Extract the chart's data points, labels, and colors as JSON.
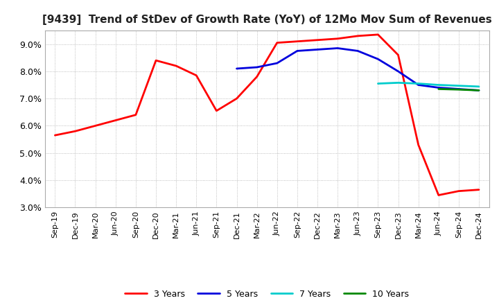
{
  "title": "[9439]  Trend of StDev of Growth Rate (YoY) of 12Mo Mov Sum of Revenues",
  "title_fontsize": 11,
  "ylim": [
    0.03,
    0.095
  ],
  "yticks": [
    0.03,
    0.04,
    0.05,
    0.06,
    0.07,
    0.08,
    0.09
  ],
  "background_color": "#ffffff",
  "plot_bg_color": "#ffffff",
  "grid_color": "#888888",
  "x_labels": [
    "Sep-19",
    "Dec-19",
    "Mar-20",
    "Jun-20",
    "Sep-20",
    "Dec-20",
    "Mar-21",
    "Jun-21",
    "Sep-21",
    "Dec-21",
    "Mar-22",
    "Jun-22",
    "Sep-22",
    "Dec-22",
    "Mar-23",
    "Jun-23",
    "Sep-23",
    "Dec-23",
    "Mar-24",
    "Jun-24",
    "Sep-24",
    "Dec-24"
  ],
  "series": {
    "3 Years": {
      "color": "#ff0000",
      "linewidth": 2.0,
      "values": [
        0.0565,
        0.058,
        0.06,
        0.062,
        0.064,
        0.084,
        0.082,
        0.0785,
        0.0655,
        0.07,
        0.078,
        0.0905,
        0.091,
        0.0915,
        0.092,
        0.093,
        0.0935,
        0.086,
        0.053,
        0.0345,
        0.036,
        0.0365
      ]
    },
    "5 Years": {
      "color": "#0000dd",
      "linewidth": 2.0,
      "values": [
        null,
        null,
        null,
        null,
        null,
        null,
        null,
        null,
        null,
        0.081,
        0.0815,
        0.083,
        0.0875,
        0.088,
        0.0885,
        0.0875,
        0.0845,
        0.08,
        0.075,
        0.074,
        0.0735,
        0.073
      ]
    },
    "7 Years": {
      "color": "#00cccc",
      "linewidth": 2.0,
      "values": [
        null,
        null,
        null,
        null,
        null,
        null,
        null,
        null,
        null,
        null,
        null,
        null,
        null,
        null,
        null,
        null,
        0.0755,
        0.0758,
        0.0755,
        0.075,
        0.0747,
        0.0744
      ]
    },
    "10 Years": {
      "color": "#008800",
      "linewidth": 2.0,
      "values": [
        null,
        null,
        null,
        null,
        null,
        null,
        null,
        null,
        null,
        null,
        null,
        null,
        null,
        null,
        null,
        null,
        null,
        null,
        null,
        0.0735,
        0.0733,
        0.073
      ]
    }
  },
  "legend_ncol": 4,
  "legend_fontsize": 9,
  "tick_fontsize": 8,
  "ytick_fontsize": 9
}
